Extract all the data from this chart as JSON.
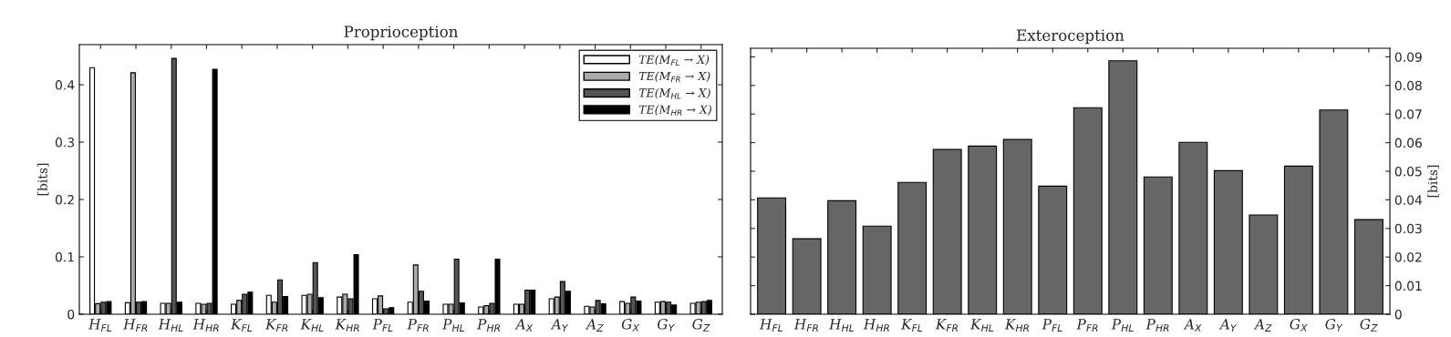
{
  "chart_data": [
    {
      "type": "bar",
      "title": "Proprioception",
      "ylabel": "[bits]",
      "categories": [
        "H$_{FL}$",
        "H$_{FR}$",
        "H$_{HL}$",
        "H$_{HR}$",
        "K$_{FL}$",
        "K$_{FR}$",
        "K$_{HL}$",
        "K$_{HR}$",
        "P$_{FL}$",
        "P$_{FR}$",
        "P$_{HL}$",
        "P$_{HR}$",
        "A$_{X}$",
        "A$_{Y}$",
        "A$_{Z}$",
        "G$_{X}$",
        "G$_{Y}$",
        "G$_{Z}$"
      ],
      "series": [
        {
          "name": "TE(M$_{FL}$ → X)",
          "color": "#ffffff",
          "values": [
            0.43,
            0.02,
            0.019,
            0.019,
            0.0175,
            0.033,
            0.033,
            0.03,
            0.027,
            0.021,
            0.0175,
            0.0127,
            0.0175,
            0.027,
            0.014,
            0.022,
            0.021,
            0.019
          ]
        },
        {
          "name": "TE(M$_{FR}$ → X)",
          "color": "#aaaaaa",
          "values": [
            0.0185,
            0.421,
            0.019,
            0.0175,
            0.024,
            0.021,
            0.035,
            0.035,
            0.032,
            0.086,
            0.0175,
            0.0148,
            0.0175,
            0.03,
            0.0127,
            0.019,
            0.022,
            0.021
          ]
        },
        {
          "name": "TE(M$_{HL}$ → X)",
          "color": "#555555",
          "values": [
            0.021,
            0.021,
            0.446,
            0.019,
            0.035,
            0.06,
            0.09,
            0.027,
            0.0095,
            0.04,
            0.096,
            0.019,
            0.042,
            0.057,
            0.024,
            0.03,
            0.021,
            0.022
          ]
        },
        {
          "name": "TE(M$_{HR}$ → X)",
          "color": "#000000",
          "values": [
            0.022,
            0.022,
            0.021,
            0.427,
            0.0386,
            0.031,
            0.029,
            0.104,
            0.0116,
            0.023,
            0.0196,
            0.096,
            0.042,
            0.04,
            0.018,
            0.023,
            0.016,
            0.024
          ]
        }
      ],
      "ylim": [
        0,
        0.47
      ],
      "yticks": [
        0,
        0.1,
        0.2,
        0.3,
        0.4
      ],
      "legend": "top right",
      "grid": false
    },
    {
      "type": "bar",
      "title": "Exteroception",
      "y2label": "[bits]",
      "categories": [
        "H$_{FL}$",
        "H$_{FR}$",
        "H$_{HL}$",
        "H$_{HR}$",
        "K$_{FL}$",
        "K$_{FR}$",
        "K$_{HL}$",
        "K$_{HR}$",
        "P$_{FL}$",
        "P$_{FR}$",
        "P$_{HL}$",
        "P$_{HR}$",
        "A$_{X}$",
        "A$_{Y}$",
        "A$_{Z}$",
        "G$_{X}$",
        "G$_{Y}$",
        "G$_{Z}$"
      ],
      "series": [
        {
          "color": "#666666",
          "axis": "y2",
          "values": [
            0.0407,
            0.0264,
            0.0397,
            0.0308,
            0.0461,
            0.0576,
            0.0588,
            0.0611,
            0.0448,
            0.0722,
            0.0886,
            0.048,
            0.0601,
            0.0502,
            0.0347,
            0.0518,
            0.0714,
            0.0331
          ]
        }
      ],
      "y2lim": [
        0,
        0.093
      ],
      "y2ticks": [
        0,
        0.01,
        0.02,
        0.03,
        0.04,
        0.05,
        0.06,
        0.07,
        0.08,
        0.09
      ],
      "grid": false
    }
  ]
}
